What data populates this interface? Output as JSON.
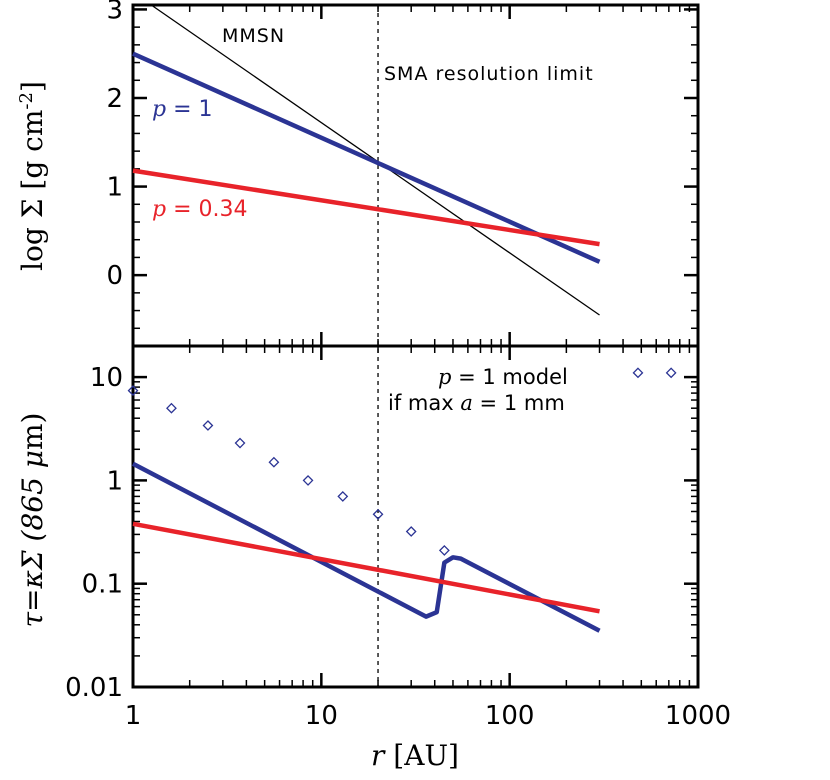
{
  "colors": {
    "p1": "#2b3494",
    "p034": "#e8232a",
    "mmsn": "#000000",
    "model": "#2b3494"
  },
  "chart_data": [
    {
      "type": "line",
      "panel": "top",
      "xscale": "log",
      "xlim": [
        1,
        1000
      ],
      "ylim": [
        -0.8,
        3.05
      ],
      "xlabel": "",
      "ylabel": "log Σ [g cm⁻²]",
      "yticks": [
        "0",
        "1",
        "2",
        "3"
      ],
      "series": [
        {
          "name": "p = 1",
          "x": [
            1,
            300
          ],
          "y": [
            2.5,
            0.15
          ]
        },
        {
          "name": "p = 0.34",
          "x": [
            1,
            300
          ],
          "y": [
            1.18,
            0.35
          ]
        },
        {
          "name": "MMSN",
          "x": [
            1.25,
            300
          ],
          "y": [
            3.05,
            -0.45
          ]
        }
      ],
      "annotations": {
        "mmsn": "MMSN",
        "sma": "SMA resolution limit",
        "p1_label": "p = 1",
        "p034_label": "p = 0.34",
        "resolution_limit_au": 20
      },
      "ticks": {
        "p1_var": "p",
        "p1_rest": " = 1",
        "p034_var": "p",
        "p034_rest": " = 0.34"
      }
    },
    {
      "type": "line",
      "panel": "bottom",
      "xscale": "log",
      "yscale": "log",
      "xlim": [
        1,
        1000
      ],
      "ylim": [
        0.01,
        20
      ],
      "xlabel": "r [AU]",
      "ylabel": "τ=κΣ (865 μm)",
      "xticks": [
        "1",
        "10",
        "100",
        "1000"
      ],
      "yticks": [
        "0.01",
        "0.1",
        "1",
        "10"
      ],
      "series": [
        {
          "name": "p = 1",
          "x": [
            1,
            36,
            41,
            45,
            50,
            55,
            300
          ],
          "y": [
            1.45,
            0.048,
            0.053,
            0.16,
            0.18,
            0.175,
            0.035
          ]
        },
        {
          "name": "p = 0.34",
          "x": [
            1,
            300
          ],
          "y": [
            0.38,
            0.054
          ]
        },
        {
          "name": "p = 1 model if max a = 1 mm",
          "x": [
            1,
            1.6,
            2.5,
            3.7,
            5.6,
            8.5,
            13,
            20,
            30,
            45,
            480,
            720
          ],
          "y": [
            7.4,
            5.0,
            3.4,
            2.3,
            1.5,
            1.0,
            0.7,
            0.47,
            0.32,
            0.21,
            11,
            11
          ]
        }
      ],
      "legend": {
        "line1_var": "p",
        "line1_rest": " = 1 model",
        "line2_pre": "if max ",
        "line2_var": "a",
        "line2_rest": " = 1 mm",
        "placement": "top-right"
      }
    }
  ],
  "labels": {
    "top_y_pre": "log Σ [g cm",
    "top_y_sup": "-2",
    "top_y_post": "]",
    "bottom_y_pre": "τ=κΣ (865 ",
    "bottom_y_mu": "μ",
    "bottom_y_post": "m)",
    "x_var": "r",
    "x_rest": " [AU]"
  }
}
